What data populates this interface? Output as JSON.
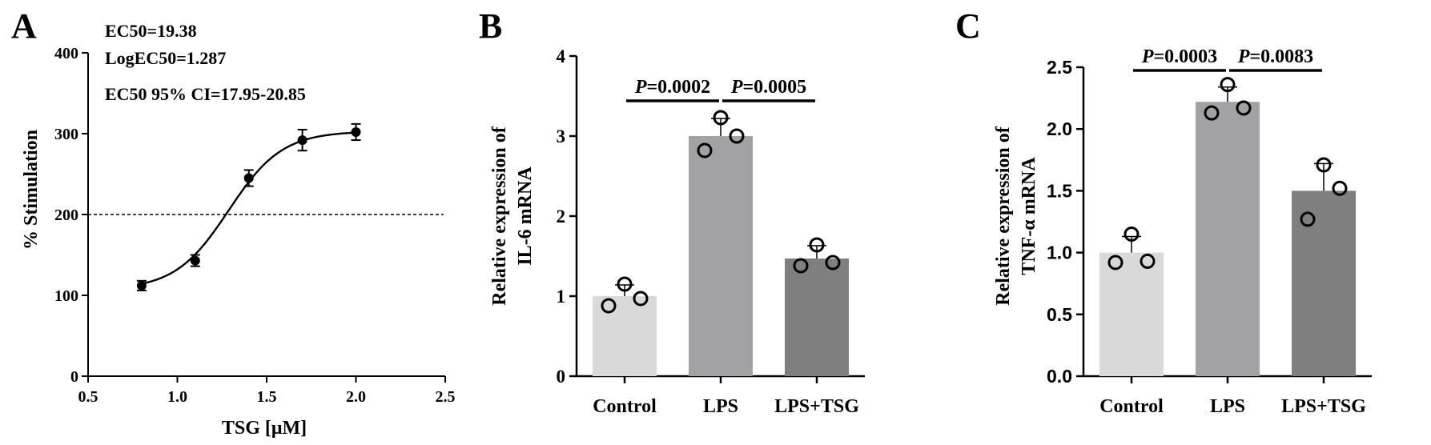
{
  "chart_data": [
    {
      "panel": "A",
      "type": "scatter",
      "xlabel": "TSG [μM]",
      "ylabel": "% Stimulation",
      "xlim": [
        0.5,
        2.5
      ],
      "ylim": [
        0,
        400
      ],
      "x_ticks": [
        "0.5",
        "1.0",
        "1.5",
        "2.0",
        "2.5"
      ],
      "y_ticks": [
        "0",
        "100",
        "200",
        "300",
        "400"
      ],
      "points": [
        {
          "x": 0.8,
          "y": 112,
          "err": 6
        },
        {
          "x": 1.1,
          "y": 143,
          "err": 7
        },
        {
          "x": 1.4,
          "y": 245,
          "err": 10
        },
        {
          "x": 1.7,
          "y": 292,
          "err": 13
        },
        {
          "x": 2.0,
          "y": 302,
          "err": 10
        }
      ],
      "fit": {
        "model": "sigmoidal dose-response",
        "bottom": 107,
        "top": 303,
        "logEC50": 1.287,
        "hill": 2.9
      },
      "reference_line_y": 200,
      "annotations": [
        "EC50=19.38",
        "LogEC50=1.287",
        "EC50 95% CI=17.95-20.85"
      ],
      "grid": false
    },
    {
      "panel": "B",
      "type": "bar",
      "ylabel_lines": [
        "Relative expression of",
        "IL-6 mRNA"
      ],
      "categories": [
        "Control",
        "LPS",
        "LPS+TSG"
      ],
      "values": [
        1.0,
        3.0,
        1.47
      ],
      "errors": [
        0.14,
        0.22,
        0.16
      ],
      "points": [
        [
          0.88,
          1.15,
          0.97
        ],
        [
          2.82,
          3.23,
          3.0
        ],
        [
          1.38,
          1.64,
          1.42
        ]
      ],
      "colors": [
        "#d9d9d9",
        "#a2a2a6",
        "#7f7f7f"
      ],
      "ylim": [
        0,
        4
      ],
      "y_ticks": [
        "0",
        "1",
        "2",
        "3",
        "4"
      ],
      "comparisons": [
        {
          "from": 0,
          "to": 1,
          "label": "=0.0002",
          "prefix": "P"
        },
        {
          "from": 1,
          "to": 2,
          "label": "=0.0005",
          "prefix": "P"
        }
      ],
      "grid": false
    },
    {
      "panel": "C",
      "type": "bar",
      "ylabel_lines": [
        "Relative expression of",
        "TNF-α mRNA"
      ],
      "categories": [
        "Control",
        "LPS",
        "LPS+TSG"
      ],
      "values": [
        1.0,
        2.22,
        1.5
      ],
      "errors": [
        0.13,
        0.12,
        0.22
      ],
      "points": [
        [
          0.92,
          1.15,
          0.93
        ],
        [
          2.13,
          2.36,
          2.17
        ],
        [
          1.27,
          1.71,
          1.52
        ]
      ],
      "colors": [
        "#d9d9d9",
        "#a2a2a6",
        "#7f7f7f"
      ],
      "ylim": [
        0,
        2.5
      ],
      "y_ticks": [
        "0.0",
        "0.5",
        "1.0",
        "1.5",
        "2.0",
        "2.5"
      ],
      "comparisons": [
        {
          "from": 0,
          "to": 1,
          "label": "=0.0003",
          "prefix": "P"
        },
        {
          "from": 1,
          "to": 2,
          "label": "=0.0083",
          "prefix": "P"
        }
      ],
      "grid": false
    }
  ]
}
